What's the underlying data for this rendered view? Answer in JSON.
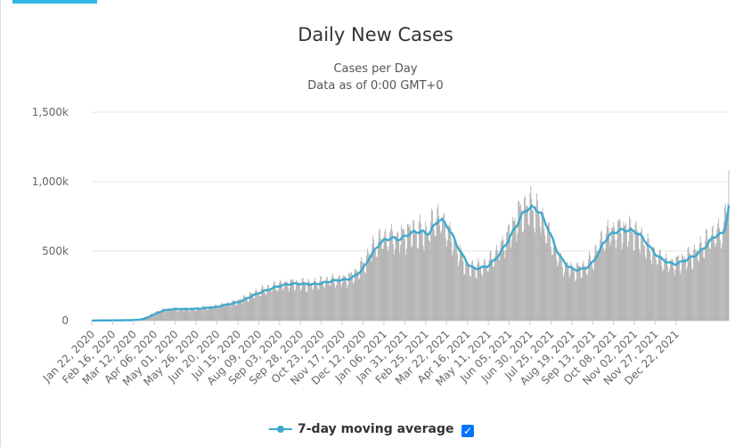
{
  "chart_data": {
    "type": "bar",
    "title": "Daily New Cases",
    "subtitle_lines": [
      "Cases per Day",
      "Data as of 0:00 GMT+0"
    ],
    "ylim": [
      0,
      1500000
    ],
    "y_ticks": [
      {
        "value": 0,
        "label": "0"
      },
      {
        "value": 500000,
        "label": "500k"
      },
      {
        "value": 1000000,
        "label": "1,000k"
      },
      {
        "value": 1500000,
        "label": "1,500k"
      }
    ],
    "x_tick_labels": [
      "Jan 22, 2020",
      "Feb 16, 2020",
      "Mar 12, 2020",
      "Apr 06, 2020",
      "May 01, 2020",
      "May 26, 2020",
      "Jun 20, 2020",
      "Jul 15, 2020",
      "Aug 09, 2020",
      "Sep 03, 2020",
      "Sep 28, 2020",
      "Oct 23, 2020",
      "Nov 17, 2020",
      "Dec 12, 2020",
      "Jan 06, 2021",
      "Jan 31, 2021",
      "Feb 25, 2021",
      "Mar 22, 2021",
      "Apr 16, 2021",
      "May 11, 2021",
      "Jun 05, 2021",
      "Jun 30, 2021",
      "Jul 25, 2021",
      "Aug 19, 2021",
      "Sep 13, 2021",
      "Oct 08, 2021",
      "Nov 02, 2021",
      "Nov 27, 2021",
      "Dec 22, 2021"
    ],
    "period_days": 25,
    "series": [
      {
        "name": "Daily New Cases",
        "kind": "bar",
        "color": "#999999",
        "note": "daily values, one per day from Jan 22, 2020; anchor values every 7 days (weekly oscillation +/- ~10% applied around them)",
        "weekly_values": [
          0,
          1000,
          1500,
          1500,
          2000,
          2500,
          3000,
          4000,
          8000,
          20000,
          40000,
          60000,
          75000,
          82000,
          85000,
          85000,
          84000,
          85000,
          88000,
          92000,
          96000,
          100000,
          110000,
          120000,
          128000,
          140000,
          160000,
          180000,
          200000,
          215000,
          230000,
          245000,
          258000,
          265000,
          270000,
          270000,
          268000,
          265000,
          268000,
          275000,
          285000,
          292000,
          298000,
          300000,
          310000,
          340000,
          380000,
          450000,
          520000,
          570000,
          600000,
          605000,
          595000,
          610000,
          640000,
          650000,
          655000,
          630000,
          680000,
          750000,
          720000,
          650000,
          560000,
          480000,
          410000,
          380000,
          385000,
          395000,
          420000,
          470000,
          530000,
          600000,
          680000,
          760000,
          820000,
          830000,
          810000,
          740000,
          640000,
          530000,
          450000,
          400000,
          375000,
          370000,
          385000,
          410000,
          470000,
          560000,
          620000,
          650000,
          660000,
          665000,
          660000,
          640000,
          600000,
          540000,
          490000,
          455000,
          430000,
          415000,
          420000,
          440000,
          460000,
          480000,
          520000,
          560000,
          620000,
          630000,
          650000,
          980000
        ]
      },
      {
        "name": "7-day moving average",
        "kind": "line",
        "color": "#3fa9d0"
      }
    ]
  },
  "legend": {
    "label": "7-day moving average",
    "checked_mark": "✓",
    "marker_color": "#3fa9d0"
  }
}
